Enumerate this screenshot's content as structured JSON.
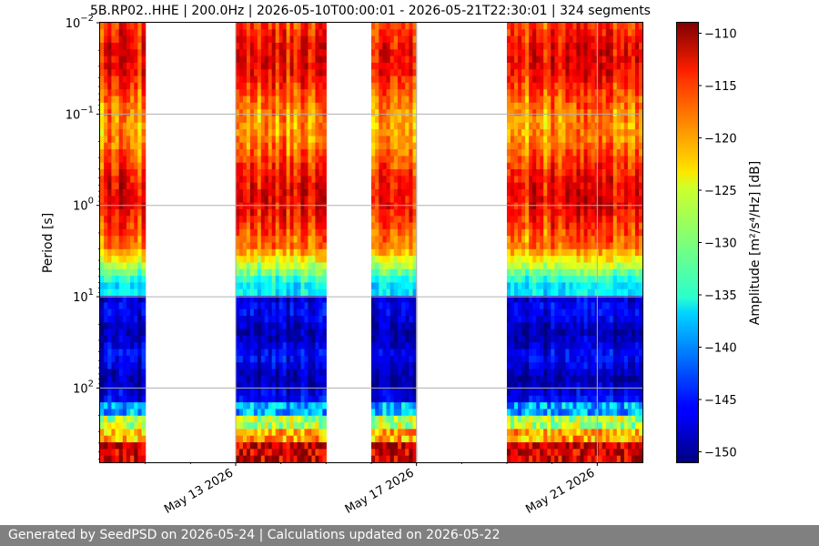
{
  "chart_data": {
    "type": "heatmap",
    "title": "5B.RP02..HHE | 200.0Hz | 2026-05-10T00:00:01 - 2026-05-21T22:30:01 | 324 segments",
    "ylabel": "Period [s]",
    "y_scale": "log",
    "y_inverted": true,
    "ylim": [
      0.01,
      650
    ],
    "y_ticks": [
      {
        "value": 0.01,
        "base": "10",
        "exp": "−2"
      },
      {
        "value": 0.1,
        "base": "10",
        "exp": "−1"
      },
      {
        "value": 1,
        "base": "10",
        "exp": "0"
      },
      {
        "value": 10,
        "base": "10",
        "exp": "1"
      },
      {
        "value": 100,
        "base": "10",
        "exp": "2"
      }
    ],
    "xlim": [
      "2026-05-10",
      "2026-05-22"
    ],
    "x_ticks": [
      {
        "date": "2026-05-13",
        "label": "May 13 2026"
      },
      {
        "date": "2026-05-17",
        "label": "May 17 2026"
      },
      {
        "date": "2026-05-21",
        "label": "May 21 2026"
      }
    ],
    "data_segments": [
      {
        "start": "2026-05-10",
        "end": "2026-05-11"
      },
      {
        "start": "2026-05-13",
        "end": "2026-05-15"
      },
      {
        "start": "2026-05-16",
        "end": "2026-05-17"
      },
      {
        "start": "2026-05-19",
        "end": "2026-05-22"
      }
    ],
    "grid": true,
    "colormap": "jet",
    "colorbar": {
      "label": "Amplitude [m²/s⁴/Hz] [dB]",
      "range": [
        -151,
        -109
      ],
      "ticks": [
        -110,
        -115,
        -120,
        -125,
        -130,
        -135,
        -140,
        -145,
        -150
      ]
    }
  },
  "footer": {
    "text": "Generated by SeedPSD on 2026-05-24 | Calculations updated on 2026-05-22"
  }
}
